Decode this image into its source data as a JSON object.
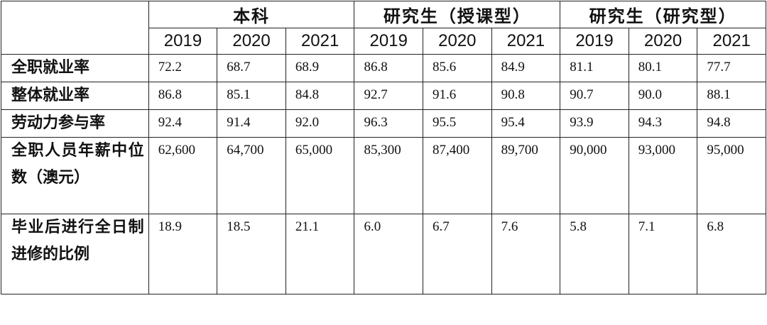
{
  "table": {
    "corner": "",
    "groups": [
      "本科",
      "研究生（授课型）",
      "研究生（研究型）"
    ],
    "years": [
      "2019",
      "2020",
      "2021",
      "2019",
      "2020",
      "2021",
      "2019",
      "2020",
      "2021"
    ],
    "rows": [
      {
        "label": "全职就业率",
        "values": [
          "72.2",
          "68.7",
          "68.9",
          "86.8",
          "85.6",
          "84.9",
          "81.1",
          "80.1",
          "77.7"
        ]
      },
      {
        "label": "整体就业率",
        "values": [
          "86.8",
          "85.1",
          "84.8",
          "92.7",
          "91.6",
          "90.8",
          "90.7",
          "90.0",
          "88.1"
        ]
      },
      {
        "label": "劳动力参与率",
        "values": [
          "92.4",
          "91.4",
          "92.0",
          "96.3",
          "95.5",
          "95.4",
          "93.9",
          "94.3",
          "94.8"
        ]
      },
      {
        "label": "全职人员年薪中位数（澳元）",
        "values": [
          "62,600",
          "64,700",
          "65,000",
          "85,300",
          "87,400",
          "89,700",
          "90,000",
          "93,000",
          "95,000"
        ]
      },
      {
        "label": "毕业后进行全日制进修的比例",
        "values": [
          "18.9",
          "18.5",
          "21.1",
          "6.0",
          "6.7",
          "7.6",
          "5.8",
          "7.1",
          "6.8"
        ]
      }
    ]
  }
}
